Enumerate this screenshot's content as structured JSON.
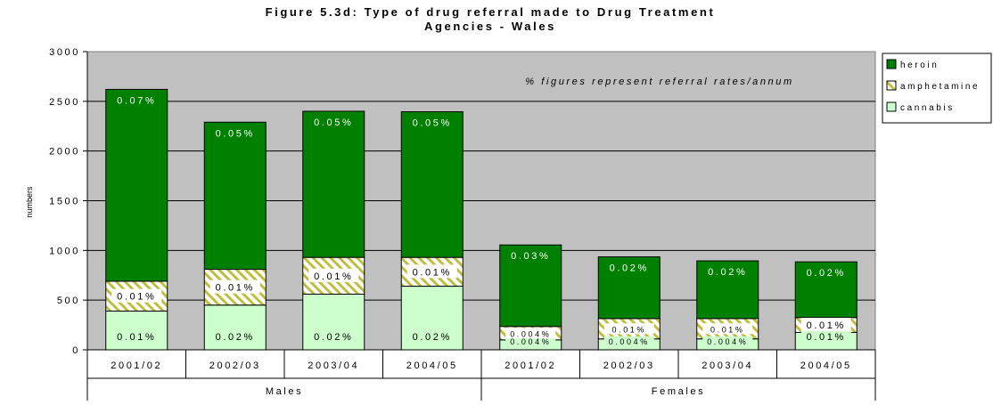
{
  "chart_data": {
    "type": "bar",
    "stacked": true,
    "title_line1": "Figure 5.3d: Type of drug referral made to Drug Treatment",
    "title_line2": "Agencies - Wales",
    "annotation": "% figures represent referral rates/annum",
    "ylabel": "numbers",
    "ylim": [
      0,
      3000
    ],
    "yticks": [
      0,
      500,
      1000,
      1500,
      2000,
      2500,
      3000
    ],
    "grid": true,
    "legend_position": "right",
    "categories": [
      "2001/02",
      "2002/03",
      "2003/04",
      "2004/05",
      "2001/02",
      "2002/03",
      "2003/04",
      "2004/05"
    ],
    "groups": [
      {
        "label": "Males",
        "count": 4
      },
      {
        "label": "Females",
        "count": 4
      }
    ],
    "series": [
      {
        "name": "cannabis",
        "color": "#ccffcc",
        "pattern": "none",
        "values": [
          390,
          450,
          560,
          640,
          100,
          110,
          110,
          175
        ],
        "labels": [
          "0.01%",
          "0.02%",
          "0.02%",
          "0.02%",
          "0.004%",
          "0.004%",
          "0.004%",
          "0.01%"
        ]
      },
      {
        "name": "amphetamine",
        "color": "#ffffff",
        "pattern": "hatch",
        "values": [
          300,
          360,
          370,
          290,
          135,
          205,
          205,
          150
        ],
        "labels": [
          "0.01%",
          "0.01%",
          "0.01%",
          "0.01%",
          "0.004%",
          "0.01%",
          "0.01%",
          "0.01%"
        ]
      },
      {
        "name": "heroin",
        "color": "#008000",
        "pattern": "none",
        "values": [
          1930,
          1480,
          1470,
          1465,
          820,
          620,
          580,
          560
        ],
        "labels": [
          "0.07%",
          "0.05%",
          "0.05%",
          "0.05%",
          "0.03%",
          "0.02%",
          "0.02%",
          "0.02%"
        ]
      }
    ],
    "legend": [
      {
        "name": "heroin",
        "text": "heroin",
        "color": "#008000",
        "pattern": "none"
      },
      {
        "name": "amphetamine",
        "text": "amphetamine",
        "color": "#ffffff",
        "pattern": "hatch"
      },
      {
        "name": "cannabis",
        "text": "cannabis",
        "color": "#ccffcc",
        "pattern": "none"
      }
    ],
    "colors": {
      "plot_background": "#c0c0c0",
      "hatch": "#bfbf3f"
    }
  }
}
